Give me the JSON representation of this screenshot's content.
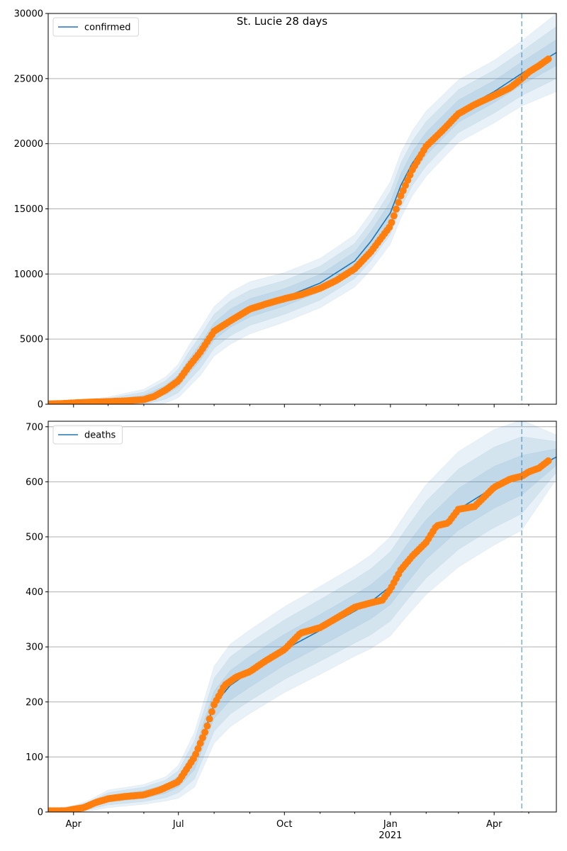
{
  "figure": {
    "title": "St. Lucie 28 days"
  },
  "colors": {
    "line": "#1f77b4",
    "points": "#ff7f0e",
    "band": "#1f77b4",
    "grid": "#b0b0b0",
    "vline": "#1f77b4"
  },
  "chart_data": [
    {
      "type": "line",
      "panel": "top",
      "legend": {
        "label": "confirmed",
        "placement": "top-left"
      },
      "xlim": [
        "2020-03-10",
        "2021-05-25"
      ],
      "ylim": [
        0,
        30000
      ],
      "yticks": [
        0,
        5000,
        10000,
        15000,
        20000,
        25000,
        30000
      ],
      "xticks": [],
      "grid": "y",
      "vline_date": "2021-04-25",
      "model": {
        "x": [
          "2020-03-10",
          "2020-04-01",
          "2020-05-01",
          "2020-06-01",
          "2020-06-20",
          "2020-07-01",
          "2020-07-10",
          "2020-07-20",
          "2020-08-01",
          "2020-08-15",
          "2020-09-01",
          "2020-10-01",
          "2020-11-01",
          "2020-12-01",
          "2020-12-15",
          "2021-01-01",
          "2021-01-10",
          "2021-01-20",
          "2021-02-01",
          "2021-03-01",
          "2021-04-01",
          "2021-04-25",
          "2021-05-25"
        ],
        "y": [
          50,
          100,
          200,
          450,
          1100,
          1800,
          2900,
          4000,
          5600,
          6600,
          7400,
          8200,
          9300,
          11000,
          12500,
          14700,
          16800,
          18500,
          20000,
          22500,
          24000,
          25400,
          27000
        ]
      },
      "bands_offset": [
        [
          250,
          200,
          350,
          700,
          1000,
          1300,
          1600,
          1800,
          1900,
          2000,
          2000,
          1900,
          1900,
          2000,
          2200,
          2400,
          2500,
          2500,
          2500,
          2400,
          2400,
          2500,
          3000
        ],
        [
          170,
          140,
          240,
          480,
          700,
          900,
          1100,
          1250,
          1300,
          1350,
          1350,
          1300,
          1300,
          1350,
          1500,
          1650,
          1700,
          1700,
          1700,
          1650,
          1650,
          1700,
          2000
        ],
        [
          90,
          70,
          120,
          240,
          360,
          460,
          560,
          640,
          660,
          700,
          700,
          670,
          670,
          700,
          780,
          850,
          880,
          880,
          880,
          850,
          850,
          880,
          1000
        ]
      ],
      "observed": {
        "x": [
          "2020-03-10",
          "2020-03-20",
          "2020-04-01",
          "2020-04-15",
          "2020-05-01",
          "2020-05-15",
          "2020-06-01",
          "2020-06-10",
          "2020-06-20",
          "2020-07-01",
          "2020-07-10",
          "2020-07-20",
          "2020-08-01",
          "2020-08-15",
          "2020-09-01",
          "2020-09-15",
          "2020-10-01",
          "2020-10-15",
          "2020-11-01",
          "2020-11-15",
          "2020-12-01",
          "2020-12-15",
          "2021-01-01",
          "2021-01-10",
          "2021-01-20",
          "2021-02-01",
          "2021-02-15",
          "2021-03-01",
          "2021-03-15",
          "2021-04-01",
          "2021-04-15",
          "2021-04-25",
          "2021-05-01",
          "2021-05-10",
          "2021-05-18"
        ],
        "y": [
          20,
          40,
          100,
          160,
          200,
          250,
          350,
          600,
          1100,
          1800,
          2900,
          4000,
          5600,
          6400,
          7300,
          7700,
          8100,
          8400,
          8900,
          9500,
          10400,
          11700,
          13700,
          16000,
          18000,
          19800,
          21000,
          22300,
          23000,
          23700,
          24300,
          25000,
          25500,
          26000,
          26500
        ]
      }
    },
    {
      "type": "line",
      "panel": "bottom",
      "legend": {
        "label": "deaths",
        "placement": "top-left"
      },
      "xlim": [
        "2020-03-10",
        "2021-05-25"
      ],
      "ylim": [
        0,
        710
      ],
      "yticks": [
        0,
        100,
        200,
        300,
        400,
        500,
        600,
        700
      ],
      "xticks": [
        {
          "date": "2020-04-01",
          "label": "Apr"
        },
        {
          "date": "2020-07-01",
          "label": "Jul"
        },
        {
          "date": "2020-10-01",
          "label": "Oct"
        },
        {
          "date": "2021-01-01",
          "label": "Jan",
          "sublabel": "2021"
        },
        {
          "date": "2021-04-01",
          "label": "Apr"
        }
      ],
      "grid": "y",
      "vline_date": "2021-04-25",
      "model": {
        "x": [
          "2020-03-10",
          "2020-04-01",
          "2020-04-15",
          "2020-05-01",
          "2020-06-01",
          "2020-06-20",
          "2020-07-01",
          "2020-07-15",
          "2020-08-01",
          "2020-08-15",
          "2020-09-01",
          "2020-10-01",
          "2020-11-01",
          "2020-12-01",
          "2020-12-15",
          "2021-01-01",
          "2021-01-15",
          "2021-02-01",
          "2021-03-01",
          "2021-04-01",
          "2021-04-25",
          "2021-05-25"
        ],
        "y": [
          2,
          5,
          12,
          24,
          32,
          42,
          55,
          95,
          195,
          230,
          255,
          295,
          330,
          365,
          382,
          410,
          450,
          495,
          550,
          590,
          612,
          645
        ]
      },
      "bands_offset": [
        [
          4,
          6,
          10,
          16,
          18,
          22,
          30,
          50,
          70,
          75,
          76,
          78,
          80,
          82,
          85,
          90,
          95,
          100,
          105,
          105,
          100,
          40
        ],
        [
          3,
          4,
          7,
          11,
          13,
          16,
          20,
          35,
          48,
          52,
          53,
          54,
          56,
          58,
          60,
          63,
          66,
          70,
          73,
          73,
          70,
          28
        ],
        [
          2,
          2,
          4,
          6,
          7,
          8,
          10,
          18,
          25,
          27,
          28,
          28,
          29,
          30,
          31,
          33,
          35,
          36,
          38,
          38,
          36,
          15
        ]
      ],
      "observed": {
        "x": [
          "2020-03-10",
          "2020-03-25",
          "2020-04-01",
          "2020-04-10",
          "2020-04-20",
          "2020-05-01",
          "2020-05-15",
          "2020-06-01",
          "2020-06-15",
          "2020-07-01",
          "2020-07-15",
          "2020-07-25",
          "2020-08-01",
          "2020-08-10",
          "2020-08-20",
          "2020-09-01",
          "2020-09-15",
          "2020-10-01",
          "2020-10-15",
          "2020-11-01",
          "2020-11-15",
          "2020-12-01",
          "2020-12-15",
          "2020-12-25",
          "2021-01-01",
          "2021-01-10",
          "2021-01-20",
          "2021-02-01",
          "2021-02-10",
          "2021-02-20",
          "2021-03-01",
          "2021-03-15",
          "2021-04-01",
          "2021-04-15",
          "2021-04-25",
          "2021-05-01",
          "2021-05-10",
          "2021-05-18"
        ],
        "y": [
          2,
          2,
          5,
          8,
          17,
          24,
          28,
          31,
          40,
          55,
          100,
          150,
          195,
          230,
          245,
          255,
          275,
          295,
          325,
          335,
          352,
          372,
          380,
          385,
          405,
          440,
          465,
          490,
          520,
          525,
          550,
          555,
          590,
          605,
          610,
          618,
          625,
          638
        ]
      }
    }
  ]
}
